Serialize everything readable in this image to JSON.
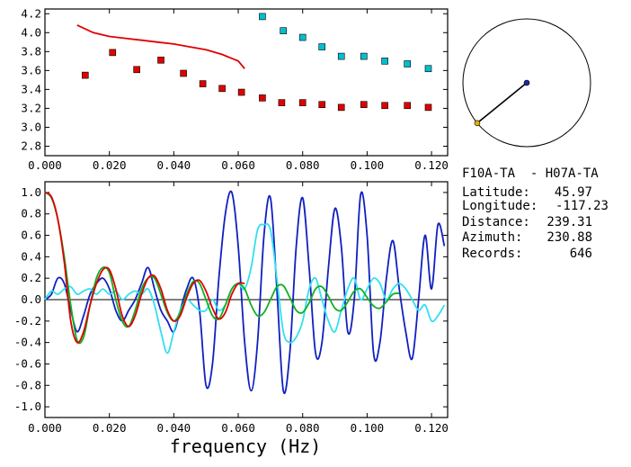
{
  "info": {
    "station_pair": "F10A-TA  - H07A-TA",
    "rows": [
      {
        "label": "Latitude:",
        "value": "45.97"
      },
      {
        "label": "Longitude:",
        "value": "-117.23"
      },
      {
        "label": "Distance:",
        "value": "239.31"
      },
      {
        "label": "Azimuth:",
        "value": "230.88"
      },
      {
        "label": "Records:",
        "value": "646"
      }
    ]
  },
  "chart_data": [
    {
      "type": "scatter",
      "xlim": [
        0.0,
        0.125
      ],
      "ylim": [
        2.7,
        4.25
      ],
      "x_ticks": [
        "0.000",
        "0.020",
        "0.040",
        "0.060",
        "0.080",
        "0.100",
        "0.120"
      ],
      "y_ticks": [
        "2.8",
        "3.0",
        "3.2",
        "3.4",
        "3.6",
        "3.8",
        "4.0",
        "4.2"
      ],
      "grid": false,
      "series": [
        {
          "color": "#e00000",
          "marker": "square",
          "x": [
            0.0125,
            0.021,
            0.0285,
            0.036,
            0.043,
            0.049,
            0.055,
            0.061,
            0.0675,
            0.0735,
            0.08,
            0.086,
            0.092,
            0.099,
            0.1055,
            0.1125,
            0.119
          ],
          "y": [
            3.55,
            3.79,
            3.61,
            3.71,
            3.57,
            3.46,
            3.41,
            3.37,
            3.31,
            3.26,
            3.26,
            3.24,
            3.21,
            3.24,
            3.23,
            3.23,
            3.21
          ]
        },
        {
          "color": "#00c0d0",
          "marker": "square",
          "x": [
            0.0675,
            0.074,
            0.08,
            0.086,
            0.092,
            0.099,
            0.1055,
            0.1125,
            0.119
          ],
          "y": [
            4.17,
            4.02,
            3.95,
            3.85,
            3.75,
            3.75,
            3.7,
            3.67,
            3.62
          ]
        },
        {
          "color": "#e00000",
          "marker": "line",
          "x": [
            0.01,
            0.015,
            0.02,
            0.025,
            0.03,
            0.035,
            0.04,
            0.045,
            0.05,
            0.055,
            0.06,
            0.062
          ],
          "y": [
            4.08,
            4.0,
            3.96,
            3.94,
            3.92,
            3.9,
            3.88,
            3.85,
            3.82,
            3.77,
            3.7,
            3.62
          ]
        }
      ]
    },
    {
      "type": "line",
      "xlim": [
        0.0,
        0.125
      ],
      "ylim": [
        -1.1,
        1.1
      ],
      "x_ticks": [
        "0.000",
        "0.020",
        "0.040",
        "0.060",
        "0.080",
        "0.100",
        "0.120"
      ],
      "y_ticks": [
        "1.0",
        "0.8",
        "0.6",
        "0.4",
        "0.2",
        "0.0",
        "-0.2",
        "-0.4",
        "-0.6",
        "-0.8",
        "-1.0"
      ],
      "xlabel": "frequency (Hz)",
      "zero_line": true,
      "grid": false,
      "series": [
        {
          "color": "#1020c0",
          "x": [
            0.0,
            0.002,
            0.004,
            0.006,
            0.008,
            0.01,
            0.012,
            0.014,
            0.016,
            0.018,
            0.02,
            0.022,
            0.024,
            0.026,
            0.028,
            0.03,
            0.032,
            0.034,
            0.036,
            0.038,
            0.04,
            0.042,
            0.044,
            0.046,
            0.048,
            0.05,
            0.052,
            0.054,
            0.056,
            0.058,
            0.06,
            0.062,
            0.064,
            0.066,
            0.068,
            0.07,
            0.072,
            0.074,
            0.076,
            0.078,
            0.08,
            0.082,
            0.084,
            0.086,
            0.088,
            0.09,
            0.092,
            0.094,
            0.096,
            0.098,
            0.1,
            0.102,
            0.104,
            0.106,
            0.108,
            0.11,
            0.112,
            0.114,
            0.116,
            0.118,
            0.12,
            0.122,
            0.124
          ],
          "y": [
            0.0,
            0.05,
            0.2,
            0.15,
            -0.1,
            -0.3,
            -0.15,
            0.05,
            0.15,
            0.2,
            0.1,
            -0.1,
            -0.2,
            -0.1,
            0.0,
            0.15,
            0.3,
            0.1,
            -0.1,
            -0.2,
            -0.3,
            -0.1,
            0.1,
            0.2,
            -0.1,
            -0.8,
            -0.6,
            0.2,
            0.8,
            1.0,
            0.5,
            -0.4,
            -0.85,
            -0.4,
            0.6,
            0.95,
            0.1,
            -0.85,
            -0.5,
            0.5,
            0.95,
            0.3,
            -0.5,
            -0.4,
            0.3,
            0.85,
            0.5,
            -0.3,
            0.0,
            0.98,
            0.6,
            -0.5,
            -0.4,
            0.2,
            0.55,
            0.1,
            -0.3,
            -0.55,
            0.0,
            0.6,
            0.1,
            0.7,
            0.5
          ]
        },
        {
          "color": "#30e0f0",
          "x": [
            0.0,
            0.002,
            0.004,
            0.006,
            0.008,
            0.01,
            0.012,
            0.014,
            0.016,
            0.018,
            0.02,
            0.022,
            0.024,
            0.026,
            0.028,
            0.03,
            0.032,
            0.034,
            0.036,
            0.038,
            0.04,
            0.042,
            0.044,
            0.046,
            0.048,
            0.05,
            0.052,
            0.054,
            0.056,
            0.058,
            0.06,
            0.062,
            0.064,
            0.066,
            0.068,
            0.07,
            0.072,
            0.074,
            0.076,
            0.078,
            0.08,
            0.082,
            0.084,
            0.086,
            0.088,
            0.09,
            0.092,
            0.094,
            0.096,
            0.098,
            0.1,
            0.102,
            0.104,
            0.106,
            0.108,
            0.11,
            0.112,
            0.114,
            0.116,
            0.118,
            0.12,
            0.122,
            0.124
          ],
          "y": [
            0.0,
            0.08,
            0.05,
            0.1,
            0.12,
            0.05,
            0.08,
            0.1,
            0.05,
            0.1,
            0.05,
            0.08,
            0.0,
            0.05,
            0.08,
            0.05,
            0.1,
            -0.05,
            -0.3,
            -0.5,
            -0.3,
            -0.1,
            0.0,
            -0.05,
            -0.1,
            -0.1,
            0.0,
            -0.1,
            -0.05,
            0.1,
            0.15,
            0.1,
            0.3,
            0.65,
            0.7,
            0.65,
            0.2,
            -0.3,
            -0.4,
            -0.35,
            -0.2,
            0.1,
            0.2,
            0.0,
            -0.2,
            -0.3,
            -0.1,
            0.1,
            0.2,
            0.0,
            0.1,
            0.2,
            0.15,
            0.0,
            0.1,
            0.15,
            0.1,
            0.0,
            -0.1,
            -0.05,
            -0.2,
            -0.15,
            -0.05
          ]
        },
        {
          "color": "#10b020",
          "x": [
            0.0,
            0.002,
            0.004,
            0.006,
            0.008,
            0.01,
            0.012,
            0.014,
            0.016,
            0.018,
            0.02,
            0.022,
            0.024,
            0.026,
            0.028,
            0.03,
            0.032,
            0.034,
            0.036,
            0.038,
            0.04,
            0.042,
            0.044,
            0.046,
            0.048,
            0.05,
            0.052,
            0.054,
            0.056,
            0.058,
            0.06,
            0.062,
            0.064,
            0.066,
            0.068,
            0.07,
            0.072,
            0.074,
            0.076,
            0.078,
            0.08,
            0.082,
            0.084,
            0.086,
            0.088,
            0.09,
            0.092,
            0.094,
            0.096,
            0.098,
            0.1,
            0.102,
            0.104,
            0.106,
            0.108,
            0.11
          ],
          "y": [
            1.0,
            0.95,
            0.75,
            0.4,
            -0.05,
            -0.38,
            -0.35,
            -0.05,
            0.2,
            0.3,
            0.25,
            0.0,
            -0.2,
            -0.25,
            -0.1,
            0.1,
            0.2,
            0.2,
            0.05,
            -0.12,
            -0.2,
            -0.12,
            0.05,
            0.17,
            0.15,
            0.0,
            -0.15,
            -0.18,
            -0.05,
            0.1,
            0.15,
            0.1,
            -0.05,
            -0.15,
            -0.12,
            0.0,
            0.12,
            0.13,
            0.02,
            -0.1,
            -0.12,
            -0.03,
            0.1,
            0.12,
            0.03,
            -0.08,
            -0.1,
            -0.02,
            0.08,
            0.1,
            0.02,
            -0.06,
            -0.08,
            -0.02,
            0.05,
            0.06
          ]
        },
        {
          "color": "#e00000",
          "x": [
            0.0,
            0.002,
            0.004,
            0.006,
            0.008,
            0.01,
            0.012,
            0.014,
            0.016,
            0.018,
            0.02,
            0.022,
            0.024,
            0.026,
            0.028,
            0.03,
            0.032,
            0.034,
            0.036,
            0.038,
            0.04,
            0.042,
            0.044,
            0.046,
            0.048,
            0.05,
            0.052,
            0.054,
            0.056,
            0.058,
            0.06,
            0.062
          ],
          "y": [
            1.0,
            0.96,
            0.75,
            0.35,
            -0.2,
            -0.4,
            -0.3,
            -0.05,
            0.15,
            0.28,
            0.28,
            0.1,
            -0.15,
            -0.25,
            -0.15,
            0.05,
            0.2,
            0.22,
            0.1,
            -0.1,
            -0.2,
            -0.15,
            0.02,
            0.15,
            0.18,
            0.08,
            -0.08,
            -0.18,
            -0.12,
            0.05,
            0.15,
            0.15
          ]
        }
      ]
    },
    {
      "type": "map",
      "circle": true,
      "points": [
        {
          "name": "center",
          "color": "#1a2aa0",
          "angle_deg": 0,
          "radius": 0
        },
        {
          "name": "end",
          "color": "#e0b000",
          "angle_deg": 230.88,
          "radius": 1.0
        }
      ]
    }
  ]
}
